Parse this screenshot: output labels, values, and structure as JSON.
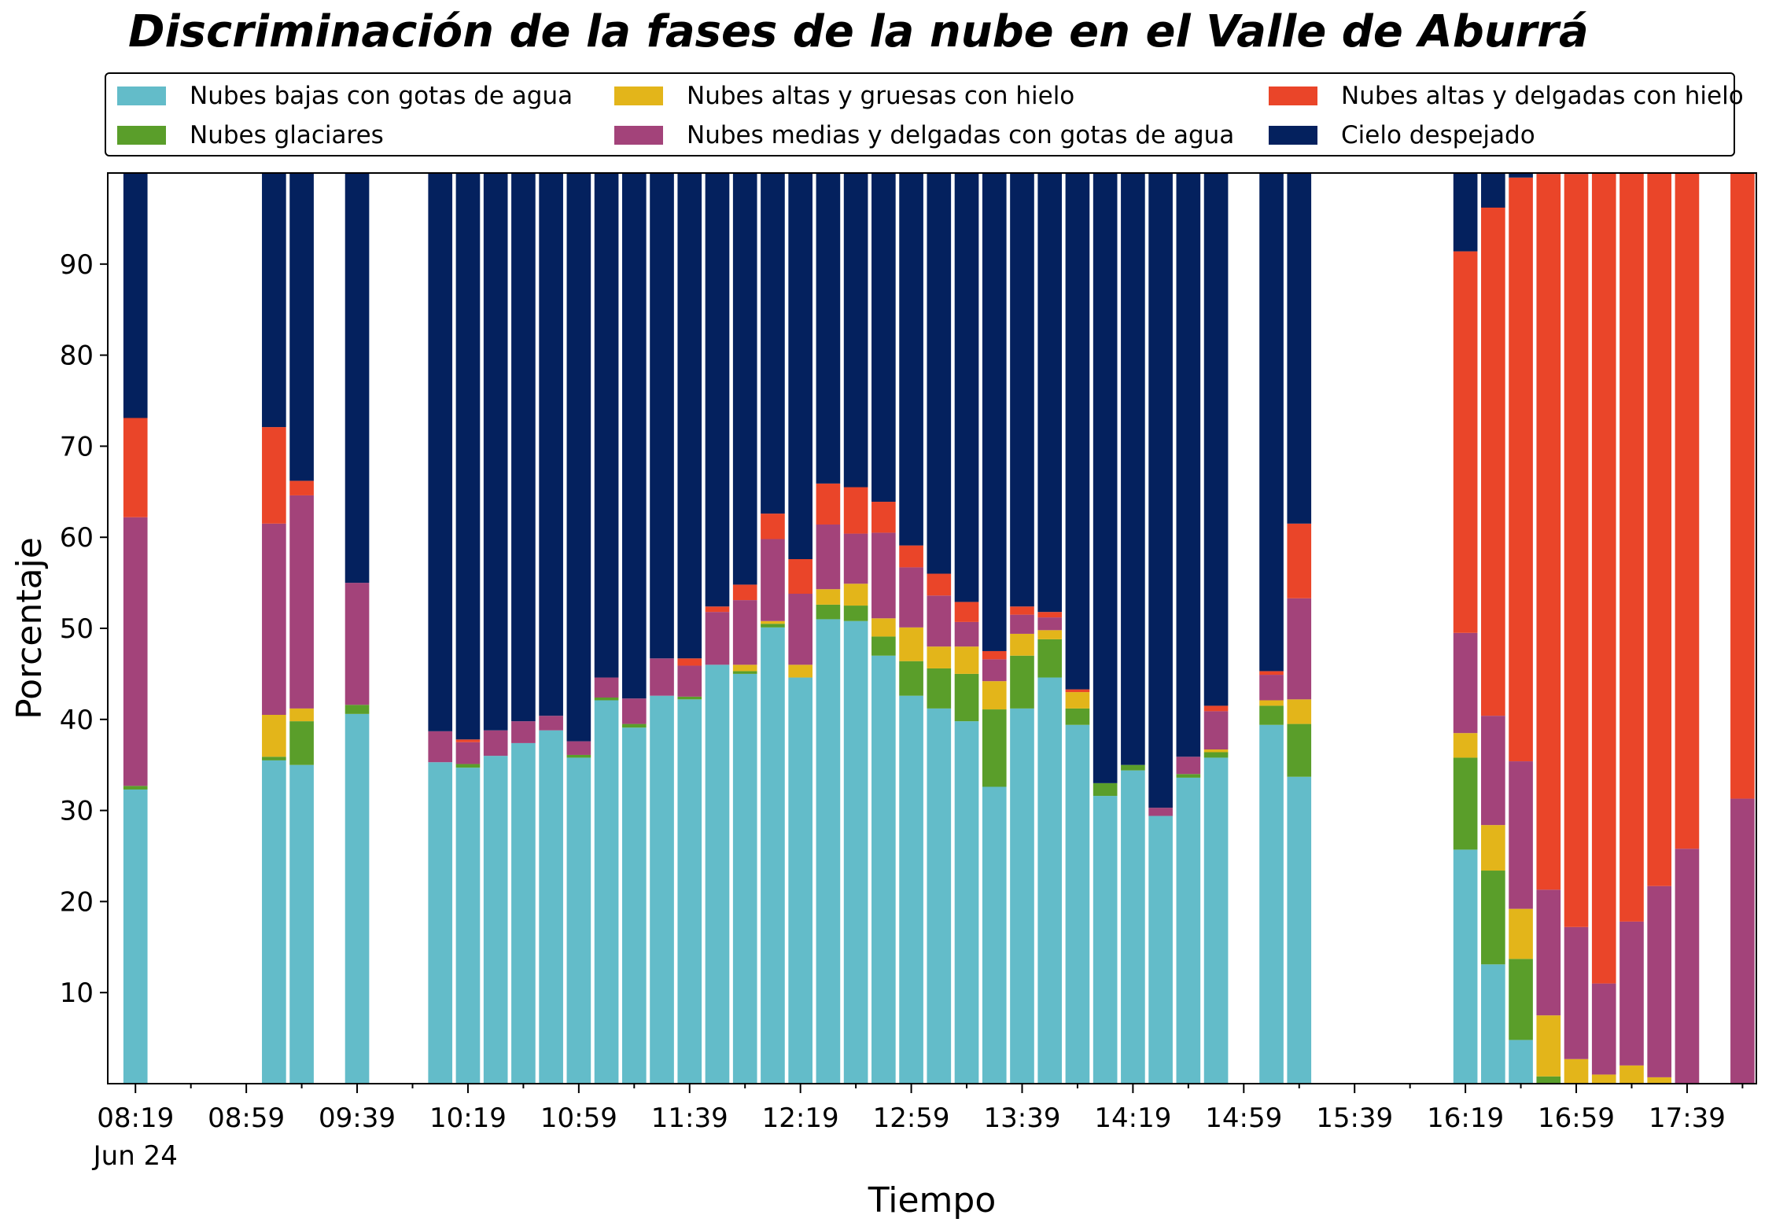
{
  "title": "Discriminación de la fases de la nube en el Valle de Aburrá",
  "legend": {
    "placement": "top, above plot (3 columns)",
    "items": [
      {
        "label": "Nubes bajas con gotas de agua",
        "color": "#63bcc9"
      },
      {
        "label": "Nubes glaciares",
        "color": "#5a9e2a"
      },
      {
        "label": "Nubes altas y gruesas con hielo",
        "color": "#e3b51a"
      },
      {
        "label": "Nubes medias y delgadas con gotas de agua",
        "color": "#a3437a"
      },
      {
        "label": "Nubes altas y delgadas con hielo",
        "color": "#ea4529"
      },
      {
        "label": "Cielo despejado",
        "color": "#04215e"
      }
    ]
  },
  "chart_data": {
    "type": "bar",
    "stacked": true,
    "title": "Discriminación de la fases de la nube en el Valle de Aburrá",
    "xlabel": "Tiempo",
    "ylabel": "Porcentaje",
    "ylim": [
      0,
      100
    ],
    "yticks": [
      10,
      20,
      30,
      40,
      50,
      60,
      70,
      80,
      90
    ],
    "xlim": [
      "08:09",
      "18:04"
    ],
    "xticks": [
      "08:19",
      "08:59",
      "09:39",
      "10:19",
      "10:59",
      "11:39",
      "12:19",
      "12:59",
      "13:39",
      "14:19",
      "14:59",
      "15:39",
      "16:19",
      "16:59",
      "17:39"
    ],
    "xtick_date_label": "Jun 24",
    "grid": false,
    "categories": [
      "08:19",
      "09:09",
      "09:19",
      "09:39",
      "10:09",
      "10:19",
      "10:29",
      "10:39",
      "10:49",
      "10:59",
      "11:09",
      "11:19",
      "11:29",
      "11:39",
      "11:49",
      "11:59",
      "12:09",
      "12:19",
      "12:29",
      "12:39",
      "12:49",
      "12:59",
      "13:09",
      "13:19",
      "13:29",
      "13:39",
      "13:49",
      "13:59",
      "14:09",
      "14:19",
      "14:29",
      "14:39",
      "14:49",
      "15:09",
      "15:19",
      "15:49",
      "16:19",
      "16:29",
      "16:39",
      "16:49",
      "16:59",
      "17:09",
      "17:19",
      "17:29",
      "17:39",
      "17:59"
    ],
    "series": [
      {
        "name": "Nubes bajas con gotas de agua",
        "color": "#63bcc9",
        "values": [
          32.3,
          35.5,
          35.0,
          40.6,
          35.3,
          34.7,
          36.0,
          37.4,
          38.8,
          35.8,
          42.1,
          39.1,
          42.6,
          42.2,
          46.0,
          45.0,
          50.1,
          44.6,
          51.0,
          50.8,
          47.0,
          42.6,
          41.2,
          39.8,
          32.6,
          41.2,
          44.6,
          39.4,
          31.6,
          34.4,
          29.4,
          33.6,
          35.8,
          39.4,
          33.7,
          0,
          25.7,
          13.1,
          4.8,
          0,
          0,
          0,
          0,
          0,
          0,
          0
        ]
      },
      {
        "name": "Nubes glaciares",
        "color": "#5a9e2a",
        "values": [
          0.4,
          0.4,
          4.8,
          1.0,
          0,
          0.4,
          0,
          0,
          0,
          0.3,
          0.3,
          0.4,
          0,
          0.3,
          0,
          0.3,
          0.4,
          0,
          1.6,
          1.7,
          2.1,
          3.8,
          4.4,
          5.2,
          8.5,
          5.8,
          4.2,
          1.8,
          1.4,
          0.6,
          0,
          0.4,
          0.6,
          2.1,
          5.8,
          0,
          10.1,
          10.3,
          8.9,
          0.8,
          0,
          0,
          0,
          0,
          0,
          0
        ]
      },
      {
        "name": "Nubes altas y gruesas con hielo",
        "color": "#e3b51a",
        "values": [
          0,
          4.6,
          1.4,
          0,
          0,
          0,
          0,
          0,
          0,
          0,
          0,
          0,
          0,
          0,
          0,
          0.7,
          0.3,
          1.4,
          1.7,
          2.4,
          2.0,
          3.7,
          2.4,
          3.0,
          3.1,
          2.4,
          1.0,
          1.8,
          0,
          0,
          0,
          0,
          0.3,
          0.6,
          2.7,
          0,
          2.7,
          5.0,
          5.5,
          6.7,
          2.7,
          1.0,
          2.0,
          0.7,
          0,
          0
        ]
      },
      {
        "name": "Nubes medias y delgadas con gotas de agua",
        "color": "#a3437a",
        "values": [
          29.5,
          21.0,
          23.4,
          13.4,
          3.4,
          2.4,
          2.8,
          2.4,
          1.6,
          1.5,
          2.2,
          2.8,
          4.1,
          3.4,
          5.8,
          7.1,
          9.0,
          7.8,
          7.1,
          5.5,
          9.4,
          6.6,
          5.6,
          2.7,
          2.4,
          2.1,
          1.4,
          0,
          0,
          0,
          0.9,
          1.9,
          4.2,
          2.8,
          11.1,
          0,
          11.0,
          12.0,
          16.2,
          13.8,
          14.5,
          10.0,
          15.8,
          21.0,
          25.8,
          31.3
        ]
      },
      {
        "name": "Nubes altas y delgadas con hielo",
        "color": "#ea4529",
        "values": [
          10.9,
          10.6,
          1.6,
          0,
          0,
          0.3,
          0,
          0,
          0,
          0,
          0,
          0,
          0,
          0.8,
          0.6,
          1.7,
          2.8,
          3.8,
          4.5,
          5.1,
          3.4,
          2.4,
          2.4,
          2.2,
          0.9,
          0.9,
          0.6,
          0.3,
          0,
          0,
          0,
          0,
          0.6,
          0.4,
          8.2,
          0,
          41.9,
          55.8,
          64.1,
          78.6,
          82.7,
          89.0,
          82.2,
          78.3,
          74.2,
          68.7
        ]
      },
      {
        "name": "Cielo despejado",
        "color": "#04215e",
        "values": [
          26.9,
          27.9,
          33.8,
          45.0,
          61.3,
          62.2,
          61.2,
          60.2,
          59.6,
          62.4,
          55.4,
          57.7,
          53.3,
          53.3,
          47.6,
          45.2,
          37.4,
          42.4,
          34.1,
          34.5,
          36.1,
          40.9,
          44.0,
          47.1,
          52.5,
          47.6,
          48.2,
          56.7,
          67.0,
          65.0,
          69.7,
          64.1,
          58.5,
          54.7,
          38.5,
          0,
          8.6,
          3.8,
          0.5,
          0.1,
          0.1,
          0,
          0,
          0,
          0,
          0
        ]
      }
    ]
  }
}
